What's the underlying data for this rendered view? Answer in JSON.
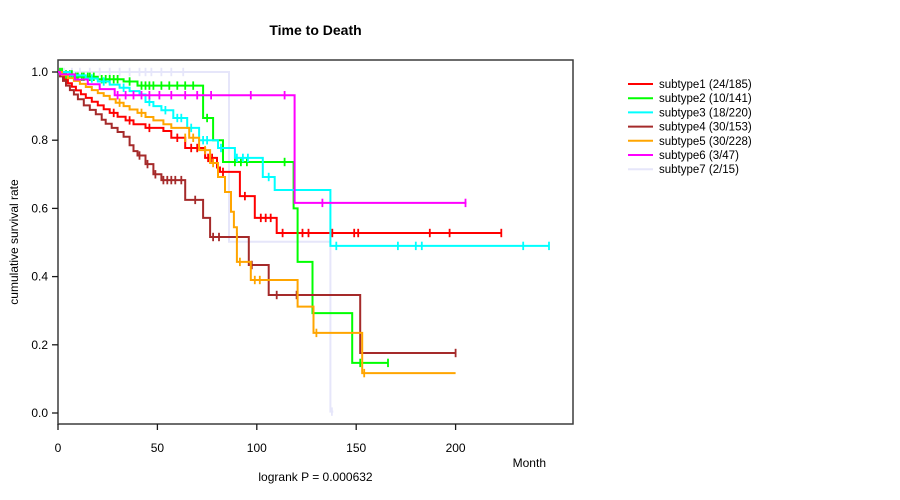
{
  "chart_data": {
    "type": "line",
    "variant": "kaplan-meier-step",
    "title": "Time to Death",
    "xlabel": "Month",
    "ylabel": "cumulative survival rate",
    "annotation": "logrank P = 0.000632",
    "xticks": [
      0,
      50,
      100,
      150,
      200
    ],
    "yticks": [
      0.0,
      0.2,
      0.4,
      0.6,
      0.8,
      1.0
    ],
    "xlim": [
      0,
      259
    ],
    "ylim": [
      0.0,
      1.0
    ],
    "grid": false,
    "legend_position": "right",
    "frame_color": "#3c3c3c",
    "tick_color": "#1a1a1a",
    "text_color": "#000000",
    "series": [
      {
        "name": "subtype1 (24/185)",
        "color": "#ff0000",
        "z": 1,
        "end": 223,
        "steps": [
          [
            1.5,
            0.989
          ],
          [
            3,
            0.978
          ],
          [
            5,
            0.967
          ],
          [
            7,
            0.957
          ],
          [
            9,
            0.946
          ],
          [
            11.5,
            0.935
          ],
          [
            14,
            0.924
          ],
          [
            17,
            0.913
          ],
          [
            20,
            0.902
          ],
          [
            23,
            0.891
          ],
          [
            26,
            0.88
          ],
          [
            30,
            0.869
          ],
          [
            34,
            0.858
          ],
          [
            38,
            0.847
          ],
          [
            44,
            0.836
          ],
          [
            53,
            0.827
          ],
          [
            57,
            0.807
          ],
          [
            64,
            0.777
          ],
          [
            74,
            0.748
          ],
          [
            80,
            0.72
          ],
          [
            81.5,
            0.707
          ],
          [
            91.5,
            0.636
          ],
          [
            99,
            0.572
          ],
          [
            110,
            0.528
          ]
        ],
        "censors": [
          [
            28,
            0.88
          ],
          [
            36,
            0.858
          ],
          [
            46,
            0.836
          ],
          [
            60,
            0.807
          ],
          [
            67,
            0.777
          ],
          [
            70,
            0.777
          ],
          [
            75.5,
            0.748
          ],
          [
            77.5,
            0.748
          ],
          [
            83,
            0.707
          ],
          [
            94,
            0.636
          ],
          [
            102,
            0.572
          ],
          [
            104.5,
            0.572
          ],
          [
            107,
            0.572
          ],
          [
            113,
            0.528
          ],
          [
            123,
            0.528
          ],
          [
            126,
            0.528
          ],
          [
            138,
            0.528
          ],
          [
            149,
            0.528
          ],
          [
            151,
            0.528
          ],
          [
            187,
            0.528
          ],
          [
            197,
            0.528
          ],
          [
            223,
            0.528
          ]
        ]
      },
      {
        "name": "subtype2 (10/141)",
        "color": "#00ff00",
        "z": 2,
        "end": 166,
        "steps": [
          [
            3,
            0.993
          ],
          [
            8,
            0.986
          ],
          [
            20,
            0.979
          ],
          [
            33,
            0.972
          ],
          [
            40,
            0.96
          ],
          [
            73,
            0.865
          ],
          [
            78,
            0.8
          ],
          [
            83,
            0.736
          ],
          [
            118.5,
            0.6
          ],
          [
            120.5,
            0.443
          ],
          [
            128,
            0.293
          ],
          [
            148,
            0.147
          ]
        ],
        "censors": [
          [
            1,
            1
          ],
          [
            2,
            1
          ],
          [
            4,
            0.993
          ],
          [
            6,
            0.993
          ],
          [
            7,
            0.993
          ],
          [
            9,
            0.986
          ],
          [
            10,
            0.986
          ],
          [
            12,
            0.986
          ],
          [
            13,
            0.986
          ],
          [
            15,
            0.986
          ],
          [
            16,
            0.986
          ],
          [
            18,
            0.986
          ],
          [
            22,
            0.979
          ],
          [
            24,
            0.979
          ],
          [
            26,
            0.979
          ],
          [
            28,
            0.979
          ],
          [
            30,
            0.979
          ],
          [
            36,
            0.972
          ],
          [
            42,
            0.96
          ],
          [
            44,
            0.96
          ],
          [
            46,
            0.96
          ],
          [
            48,
            0.96
          ],
          [
            52,
            0.96
          ],
          [
            56,
            0.96
          ],
          [
            60,
            0.96
          ],
          [
            64,
            0.96
          ],
          [
            68,
            0.96
          ],
          [
            75,
            0.865
          ],
          [
            89,
            0.736
          ],
          [
            92,
            0.736
          ],
          [
            95,
            0.736
          ],
          [
            114,
            0.736
          ],
          [
            152,
            0.147
          ],
          [
            166,
            0.147
          ]
        ]
      },
      {
        "name": "subtype3 (18/220)",
        "color": "#00ffff",
        "z": 3,
        "end": 247,
        "steps": [
          [
            6,
            0.99
          ],
          [
            14,
            0.981
          ],
          [
            20,
            0.972
          ],
          [
            26,
            0.963
          ],
          [
            31,
            0.954
          ],
          [
            36,
            0.944
          ],
          [
            41,
            0.934
          ],
          [
            44,
            0.912
          ],
          [
            48,
            0.9
          ],
          [
            52,
            0.888
          ],
          [
            58,
            0.865
          ],
          [
            65,
            0.836
          ],
          [
            71,
            0.8
          ],
          [
            80.5,
            0.777
          ],
          [
            89,
            0.748
          ],
          [
            103,
            0.692
          ],
          [
            109,
            0.654
          ],
          [
            137,
            0.49
          ]
        ],
        "censors": [
          [
            17,
            0.981
          ],
          [
            23,
            0.972
          ],
          [
            33,
            0.954
          ],
          [
            46,
            0.912
          ],
          [
            54,
            0.888
          ],
          [
            60,
            0.865
          ],
          [
            62,
            0.865
          ],
          [
            67,
            0.836
          ],
          [
            73,
            0.8
          ],
          [
            75,
            0.8
          ],
          [
            82,
            0.777
          ],
          [
            90,
            0.748
          ],
          [
            93,
            0.748
          ],
          [
            95.5,
            0.748
          ],
          [
            106,
            0.692
          ],
          [
            140,
            0.49
          ],
          [
            171,
            0.49
          ],
          [
            180,
            0.49
          ],
          [
            183,
            0.49
          ],
          [
            234,
            0.49
          ],
          [
            247,
            0.49
          ]
        ]
      },
      {
        "name": "subtype4 (30/153)",
        "color": "#a52a2a",
        "z": 4,
        "end": 200,
        "steps": [
          [
            1,
            0.987
          ],
          [
            2.5,
            0.974
          ],
          [
            4,
            0.96
          ],
          [
            6,
            0.947
          ],
          [
            8,
            0.934
          ],
          [
            10,
            0.92
          ],
          [
            13,
            0.902
          ],
          [
            16,
            0.889
          ],
          [
            19,
            0.876
          ],
          [
            22,
            0.86
          ],
          [
            24,
            0.848
          ],
          [
            27,
            0.836
          ],
          [
            30,
            0.824
          ],
          [
            33,
            0.81
          ],
          [
            36,
            0.785
          ],
          [
            38,
            0.768
          ],
          [
            40,
            0.755
          ],
          [
            44,
            0.73
          ],
          [
            48,
            0.7
          ],
          [
            52,
            0.683
          ],
          [
            64,
            0.625
          ],
          [
            73,
            0.572
          ],
          [
            76.5,
            0.516
          ],
          [
            96,
            0.434
          ],
          [
            106,
            0.346
          ],
          [
            152,
            0.176
          ]
        ],
        "censors": [
          [
            41,
            0.755
          ],
          [
            45,
            0.73
          ],
          [
            49,
            0.7
          ],
          [
            53,
            0.683
          ],
          [
            55,
            0.683
          ],
          [
            57,
            0.683
          ],
          [
            59,
            0.683
          ],
          [
            62,
            0.683
          ],
          [
            69,
            0.625
          ],
          [
            78,
            0.516
          ],
          [
            81,
            0.516
          ],
          [
            90,
            0.516
          ],
          [
            97.5,
            0.434
          ],
          [
            110,
            0.346
          ],
          [
            120,
            0.346
          ],
          [
            200,
            0.176
          ]
        ]
      },
      {
        "name": "subtype5 (30/228)",
        "color": "#ffa500",
        "z": 5,
        "end": 200,
        "steps": [
          [
            2,
            0.991
          ],
          [
            5,
            0.982
          ],
          [
            8,
            0.974
          ],
          [
            11,
            0.965
          ],
          [
            14,
            0.956
          ],
          [
            17,
            0.947
          ],
          [
            20,
            0.938
          ],
          [
            23,
            0.93
          ],
          [
            26,
            0.92
          ],
          [
            29,
            0.91
          ],
          [
            33,
            0.9
          ],
          [
            36,
            0.89
          ],
          [
            40,
            0.88
          ],
          [
            44,
            0.868
          ],
          [
            48,
            0.858
          ],
          [
            53,
            0.847
          ],
          [
            57,
            0.836
          ],
          [
            66,
            0.807
          ],
          [
            71,
            0.771
          ],
          [
            76.5,
            0.733
          ],
          [
            80.5,
            0.692
          ],
          [
            84,
            0.648
          ],
          [
            87,
            0.59
          ],
          [
            88.5,
            0.545
          ],
          [
            90,
            0.443
          ],
          [
            97,
            0.39
          ],
          [
            120.5,
            0.312
          ],
          [
            128.5,
            0.235
          ],
          [
            153,
            0.117
          ]
        ],
        "censors": [
          [
            31,
            0.91
          ],
          [
            42,
            0.88
          ],
          [
            64,
            0.807
          ],
          [
            68,
            0.807
          ],
          [
            74,
            0.771
          ],
          [
            78,
            0.733
          ],
          [
            91.5,
            0.443
          ],
          [
            99,
            0.39
          ],
          [
            101.5,
            0.39
          ],
          [
            130,
            0.235
          ],
          [
            154,
            0.117
          ]
        ]
      },
      {
        "name": "subtype6 (3/47)",
        "color": "#ff00ff",
        "z": 6,
        "end": 205.5,
        "steps": [
          [
            1,
            0.993
          ],
          [
            8.5,
            0.978
          ],
          [
            15,
            0.964
          ],
          [
            21,
            0.95
          ],
          [
            28.5,
            0.932
          ],
          [
            119,
            0.616
          ]
        ],
        "censors": [
          [
            30,
            0.932
          ],
          [
            34,
            0.932
          ],
          [
            38,
            0.932
          ],
          [
            42,
            0.932
          ],
          [
            46,
            0.932
          ],
          [
            51,
            0.932
          ],
          [
            57,
            0.932
          ],
          [
            64,
            0.932
          ],
          [
            70,
            0.932
          ],
          [
            77,
            0.932
          ],
          [
            97,
            0.932
          ],
          [
            114,
            0.932
          ],
          [
            133,
            0.616
          ],
          [
            205,
            0.616
          ]
        ]
      },
      {
        "name": "subtype7 (2/15)",
        "color": "#e6e6fa",
        "z": 0,
        "end": 138.5,
        "steps": [
          [
            86,
            0.502
          ],
          [
            137,
            0.004
          ]
        ],
        "censors": [
          [
            3,
            1
          ],
          [
            7,
            1
          ],
          [
            11,
            1
          ],
          [
            16,
            1
          ],
          [
            21,
            1
          ],
          [
            26,
            1
          ],
          [
            31,
            1
          ],
          [
            36,
            1
          ],
          [
            41,
            1
          ],
          [
            44,
            1
          ],
          [
            47,
            1
          ],
          [
            52,
            1
          ],
          [
            57,
            1
          ],
          [
            63,
            1
          ],
          [
            137.8,
            0.004
          ]
        ]
      }
    ]
  }
}
